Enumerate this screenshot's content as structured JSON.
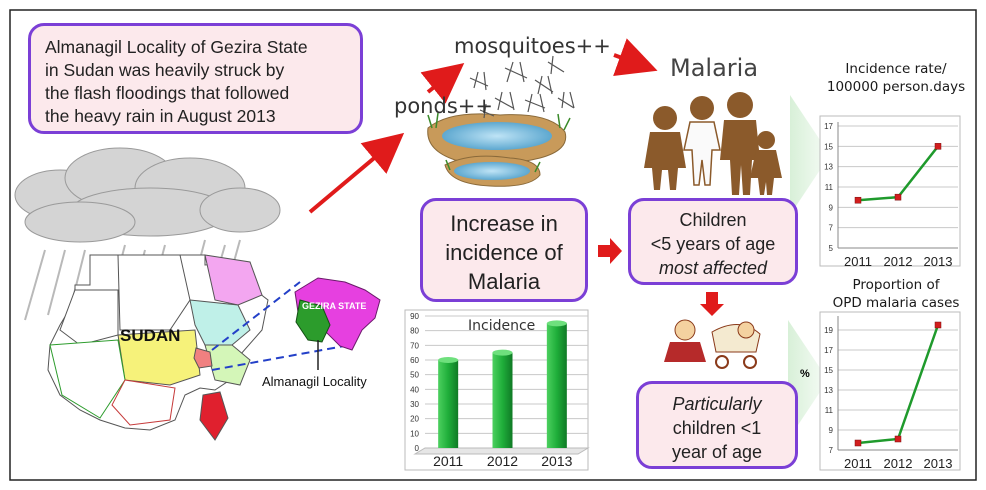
{
  "intro_text": [
    "Almanagil Locality of Gezira State",
    "in Sudan   was  heavily struck   by",
    "the flash floodings   that followed",
    "the   heavy   rain in   August   2013"
  ],
  "labels": {
    "ponds": "ponds++",
    "mosquitoes": "mosquitoes++",
    "malaria": "Malaria",
    "sudan": "SUDAN",
    "gezira_state": "GEZIRA STATE",
    "almanagil_locality": "Almanagil Locality"
  },
  "increase_box": [
    "Increase in",
    "incidence of",
    "Malaria"
  ],
  "children_box": {
    "line1": "Children",
    "line2": "<5 years of age",
    "line3": "most affected"
  },
  "infants_box": {
    "line1": "Particularly",
    "line2": "children   <1",
    "line3": "year of age"
  },
  "colors": {
    "box_border": "#7b3fd6",
    "box_fill": "#fce9ec",
    "bar_green": "#1fae3a",
    "line_green": "#1f9a2c",
    "marker_red": "#d21e1e",
    "arrow_red": "#e01b1b",
    "children_brown": "#8b5a2b"
  },
  "chart_data": [
    {
      "type": "bar",
      "title": "Incidence",
      "categories": [
        "2011",
        "2012",
        "2013"
      ],
      "values": [
        60,
        65,
        85
      ],
      "yticks": [
        0,
        10,
        20,
        30,
        40,
        50,
        60,
        70,
        80,
        90
      ],
      "ylim": [
        0,
        90
      ],
      "grid": true
    },
    {
      "type": "line",
      "title": [
        "Incidence rate/",
        "100000 person.days"
      ],
      "x": [
        "2011",
        "2012",
        "2013"
      ],
      "values": [
        9.7,
        10,
        15
      ],
      "yticks": [
        5,
        7,
        9,
        11,
        13,
        15,
        17
      ],
      "ylim": [
        5,
        17
      ],
      "grid": true
    },
    {
      "type": "line",
      "title": [
        "Proportion of",
        "OPD malaria cases"
      ],
      "ylabel": "%",
      "x": [
        "2011",
        "2012",
        "2013"
      ],
      "values": [
        7.7,
        8.1,
        19.5
      ],
      "yticks": [
        7,
        9,
        11,
        13,
        15,
        17,
        19
      ],
      "ylim": [
        7,
        20
      ],
      "grid": true
    }
  ]
}
